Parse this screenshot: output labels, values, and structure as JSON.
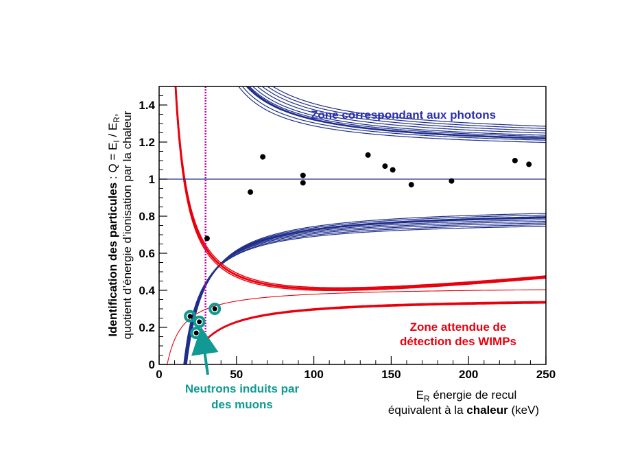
{
  "chart_data": {
    "type": "scatter",
    "xlim": [
      0,
      250
    ],
    "ylim": [
      0,
      1.5
    ],
    "x_ticks": [
      0,
      50,
      100,
      150,
      200,
      250
    ],
    "y_ticks": [
      0,
      0.2,
      0.4,
      0.6,
      0.8,
      1,
      1.2,
      1.4
    ],
    "ylabel_line1_bold": "Identification des particules",
    "ylabel_line1_rest": " : Q = E",
    "ylabel_sub_I": "I",
    "ylabel_mid": " / E",
    "ylabel_sub_R": "R",
    "ylabel_end": ",",
    "ylabel_line2": "quotient d’énergie d’ionisation par la chaleur",
    "xlabel_line1_E": "E",
    "xlabel_line1_sub": "R",
    "xlabel_line1_rest": " énergie de recul",
    "xlabel_line2_pre": "équivalent à la ",
    "xlabel_line2_bold": "chaleur",
    "xlabel_line2_post": " (keV)",
    "annotation_photons": "Zone correspondant aux photons",
    "annotation_wimps_line1": "Zone attendue de",
    "annotation_wimps_line2": "détection des WIMPs",
    "annotation_neutrons_line1": "Neutrons induits par",
    "annotation_neutrons_line2": "des muons",
    "threshold_x": 30,
    "reference_y": 1,
    "events": [
      {
        "x": 31,
        "y": 0.68
      },
      {
        "x": 59,
        "y": 0.93
      },
      {
        "x": 67,
        "y": 1.12
      },
      {
        "x": 93,
        "y": 1.02
      },
      {
        "x": 93,
        "y": 0.98
      },
      {
        "x": 135,
        "y": 1.13
      },
      {
        "x": 146,
        "y": 1.07
      },
      {
        "x": 151,
        "y": 1.05
      },
      {
        "x": 163,
        "y": 0.97
      },
      {
        "x": 189,
        "y": 0.99
      },
      {
        "x": 230,
        "y": 1.1
      },
      {
        "x": 239,
        "y": 1.08
      }
    ],
    "neutron_events": [
      {
        "x": 20,
        "y": 0.26
      },
      {
        "x": 26,
        "y": 0.23
      },
      {
        "x": 24,
        "y": 0.17
      },
      {
        "x": 36,
        "y": 0.3
      }
    ],
    "colors": {
      "photon_band": "#1f2e8a",
      "nuclear_band": "#e8000d",
      "threshold": "#cc00aa",
      "neutron_marker": "#109a93",
      "neutron_text": "#109a93",
      "photon_text": "#2a2fb0",
      "wimp_text": "#e8000d"
    }
  }
}
